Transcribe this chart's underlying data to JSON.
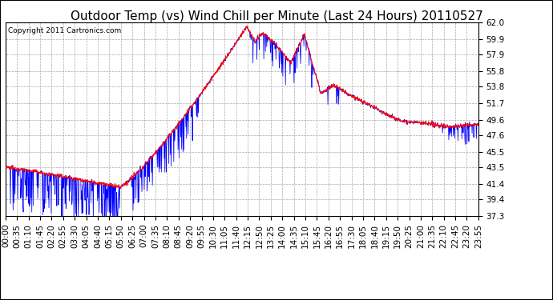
{
  "title": "Outdoor Temp (vs) Wind Chill per Minute (Last 24 Hours) 20110527",
  "copyright": "Copyright 2011 Cartronics.com",
  "yticks": [
    37.3,
    39.4,
    41.4,
    43.5,
    45.5,
    47.6,
    49.6,
    51.7,
    53.8,
    55.8,
    57.9,
    59.9,
    62.0
  ],
  "xtick_labels": [
    "00:00",
    "00:35",
    "01:10",
    "01:45",
    "02:20",
    "02:55",
    "03:30",
    "04:05",
    "04:40",
    "05:15",
    "05:50",
    "06:25",
    "07:00",
    "07:35",
    "08:10",
    "08:45",
    "09:20",
    "09:55",
    "10:30",
    "11:05",
    "11:40",
    "12:15",
    "12:50",
    "13:25",
    "14:00",
    "14:35",
    "15:10",
    "15:45",
    "16:20",
    "16:55",
    "17:30",
    "18:05",
    "18:40",
    "19:15",
    "19:50",
    "20:25",
    "21:00",
    "21:35",
    "22:10",
    "22:45",
    "23:20",
    "23:55"
  ],
  "ymin": 37.3,
  "ymax": 62.0,
  "background_color": "#ffffff",
  "plot_bg_color": "#ffffff",
  "grid_color": "#aaaaaa",
  "line_color_red": "#ff0000",
  "line_color_blue": "#0000ff",
  "title_fontsize": 11,
  "copyright_fontsize": 6.5,
  "tick_fontsize": 7.5
}
